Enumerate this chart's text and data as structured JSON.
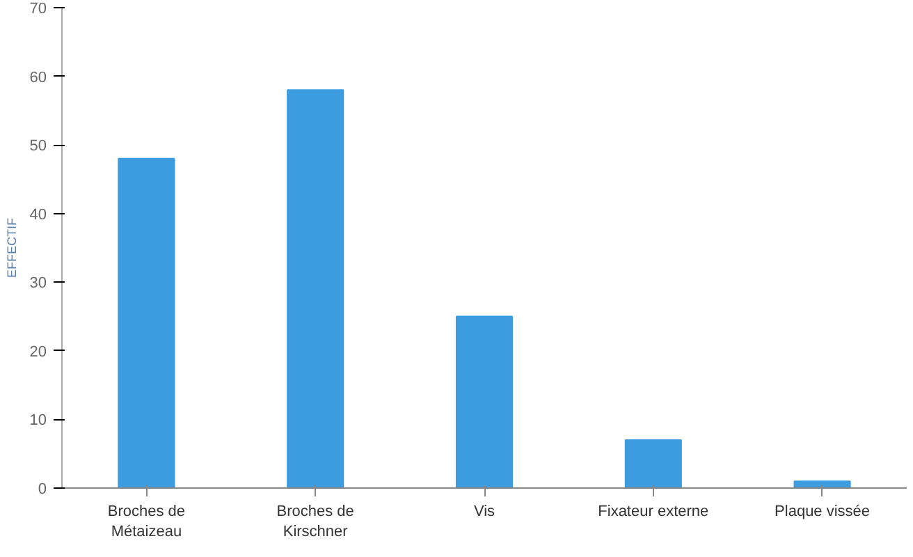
{
  "chart_data": {
    "type": "bar",
    "ylabel": "EFFECTIF",
    "categories": [
      "Broches de\nMétaizeau",
      "Broches de\nKirschner",
      "Vis",
      "Fixateur externe",
      "Plaque vissée"
    ],
    "values": [
      48,
      58,
      25,
      7,
      1
    ],
    "color": "#3d9be0",
    "ylim": [
      0,
      70
    ],
    "yticks": [
      0,
      10,
      20,
      30,
      40,
      50,
      60,
      70
    ],
    "grid": false
  }
}
